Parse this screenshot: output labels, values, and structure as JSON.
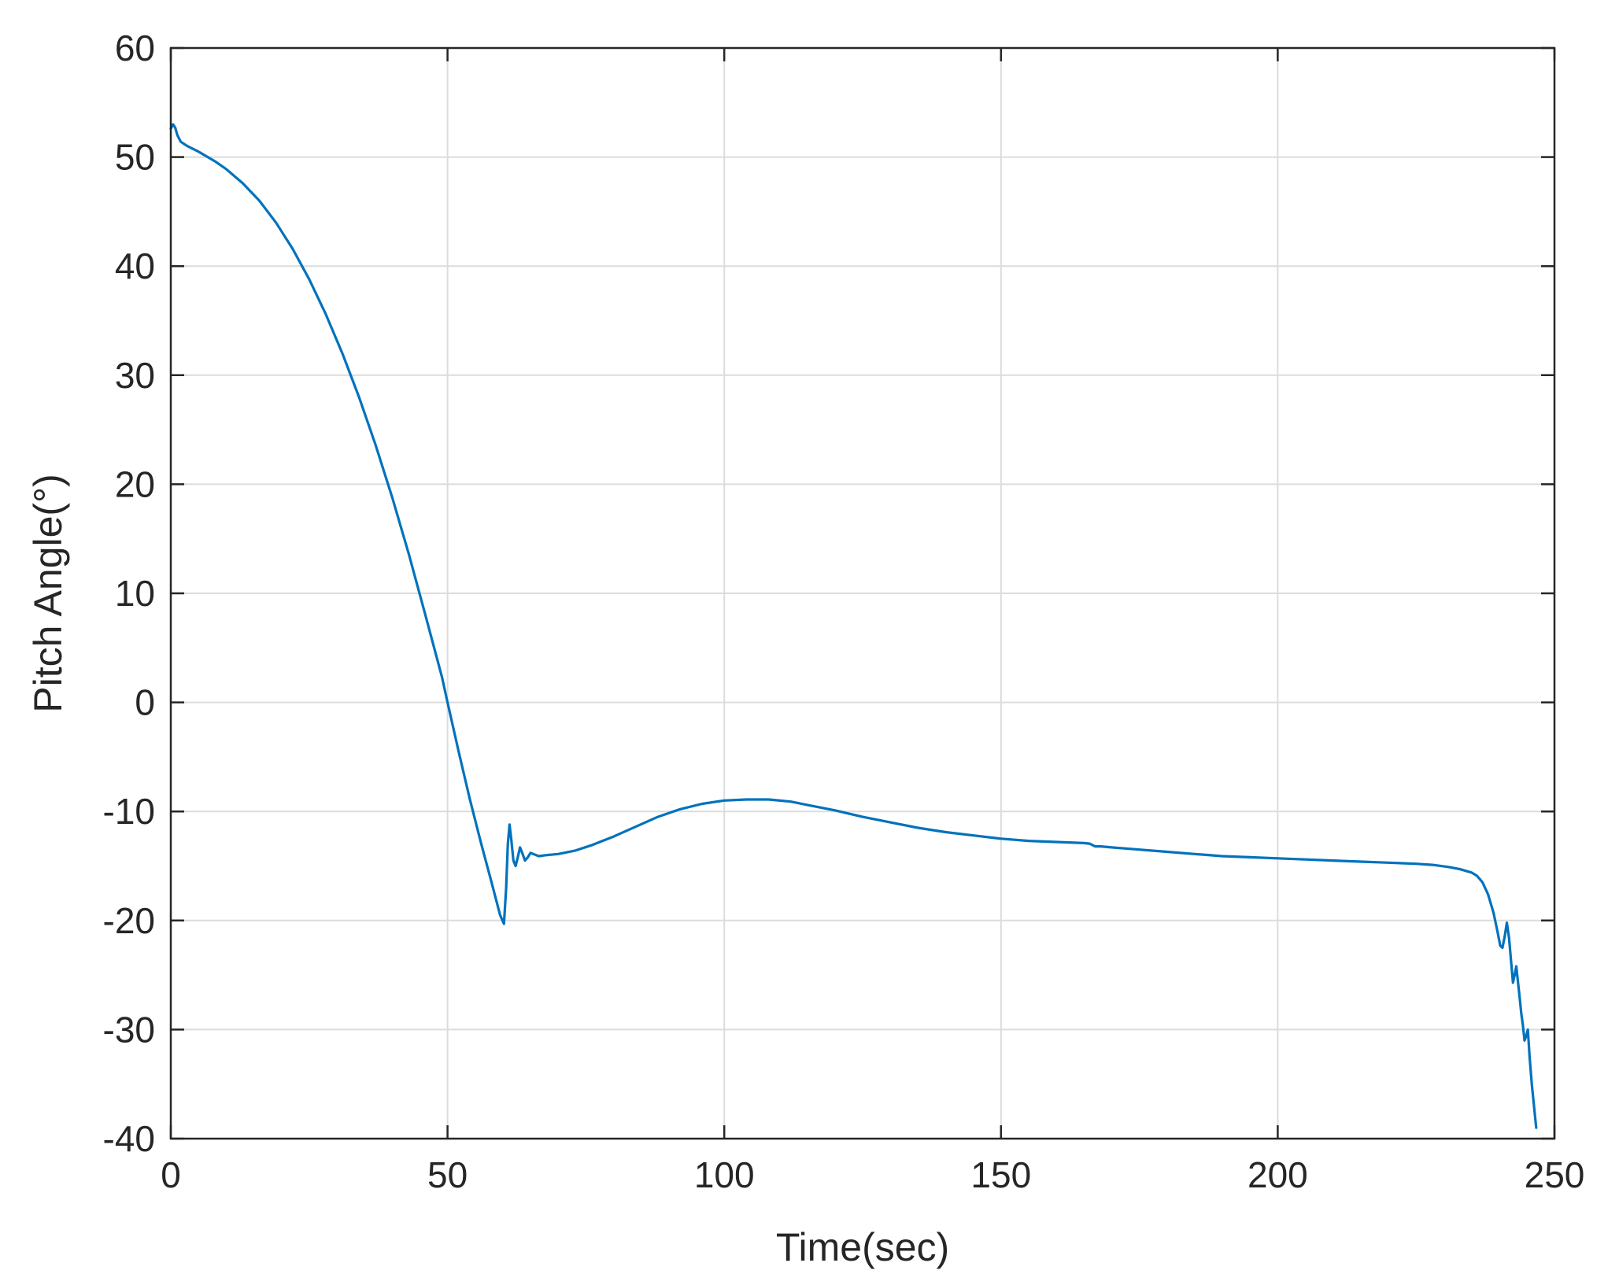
{
  "chart_data": {
    "type": "line",
    "title": "",
    "xlabel": "Time(sec)",
    "ylabel": "Pitch Angle(°)",
    "xlim": [
      0,
      250
    ],
    "ylim": [
      -40,
      60
    ],
    "x_ticks": [
      0,
      50,
      100,
      150,
      200,
      250
    ],
    "y_ticks": [
      -40,
      -30,
      -20,
      -10,
      0,
      10,
      20,
      30,
      40,
      50,
      60
    ],
    "x_tick_labels": [
      "0",
      "50",
      "100",
      "150",
      "200",
      "250"
    ],
    "y_tick_labels": [
      "-40",
      "-30",
      "-20",
      "-10",
      "0",
      "10",
      "20",
      "30",
      "40",
      "50",
      "60"
    ],
    "grid": true,
    "box": true,
    "legend": "none",
    "colors": {
      "line": "#0072BD",
      "grid": "#DCDCDC",
      "axes": "#262626",
      "background": "#FFFFFF"
    },
    "series": [
      {
        "color": "#0072BD",
        "points": [
          [
            0.0,
            52.6
          ],
          [
            0.4,
            53.0
          ],
          [
            0.8,
            52.7
          ],
          [
            1.2,
            52.0
          ],
          [
            1.8,
            51.4
          ],
          [
            3.0,
            51.0
          ],
          [
            5.0,
            50.5
          ],
          [
            8.0,
            49.6
          ],
          [
            10.0,
            48.9
          ],
          [
            13.0,
            47.6
          ],
          [
            16.0,
            46.0
          ],
          [
            19.0,
            44.0
          ],
          [
            22.0,
            41.6
          ],
          [
            25.0,
            38.8
          ],
          [
            28.0,
            35.6
          ],
          [
            31.0,
            32.0
          ],
          [
            34.0,
            28.0
          ],
          [
            37.0,
            23.6
          ],
          [
            40.0,
            18.8
          ],
          [
            43.0,
            13.6
          ],
          [
            46.0,
            8.0
          ],
          [
            49.0,
            2.3
          ],
          [
            50.0,
            0.0
          ],
          [
            52.0,
            -4.5
          ],
          [
            54.0,
            -8.8
          ],
          [
            56.0,
            -12.8
          ],
          [
            58.0,
            -16.6
          ],
          [
            59.5,
            -19.5
          ],
          [
            60.2,
            -20.3
          ],
          [
            60.6,
            -17.0
          ],
          [
            60.9,
            -13.0
          ],
          [
            61.2,
            -11.2
          ],
          [
            61.5,
            -12.5
          ],
          [
            61.9,
            -14.5
          ],
          [
            62.3,
            -15.0
          ],
          [
            62.7,
            -14.2
          ],
          [
            63.1,
            -13.3
          ],
          [
            63.5,
            -13.8
          ],
          [
            64.0,
            -14.5
          ],
          [
            64.5,
            -14.2
          ],
          [
            65.0,
            -13.8
          ],
          [
            65.5,
            -13.9
          ],
          [
            66.5,
            -14.1
          ],
          [
            68.0,
            -14.0
          ],
          [
            70.0,
            -13.9
          ],
          [
            73.0,
            -13.6
          ],
          [
            76.0,
            -13.1
          ],
          [
            80.0,
            -12.3
          ],
          [
            84.0,
            -11.4
          ],
          [
            88.0,
            -10.5
          ],
          [
            92.0,
            -9.8
          ],
          [
            96.0,
            -9.3
          ],
          [
            100.0,
            -9.0
          ],
          [
            104.0,
            -8.9
          ],
          [
            108.0,
            -8.9
          ],
          [
            112.0,
            -9.1
          ],
          [
            116.0,
            -9.5
          ],
          [
            120.0,
            -9.9
          ],
          [
            125.0,
            -10.5
          ],
          [
            130.0,
            -11.0
          ],
          [
            135.0,
            -11.5
          ],
          [
            140.0,
            -11.9
          ],
          [
            145.0,
            -12.2
          ],
          [
            150.0,
            -12.5
          ],
          [
            155.0,
            -12.7
          ],
          [
            160.0,
            -12.8
          ],
          [
            165.0,
            -12.9
          ],
          [
            166.0,
            -12.95
          ],
          [
            167.0,
            -13.2
          ],
          [
            168.0,
            -13.2
          ],
          [
            170.0,
            -13.3
          ],
          [
            175.0,
            -13.5
          ],
          [
            180.0,
            -13.7
          ],
          [
            185.0,
            -13.9
          ],
          [
            190.0,
            -14.1
          ],
          [
            195.0,
            -14.2
          ],
          [
            200.0,
            -14.3
          ],
          [
            205.0,
            -14.4
          ],
          [
            210.0,
            -14.5
          ],
          [
            215.0,
            -14.6
          ],
          [
            220.0,
            -14.7
          ],
          [
            225.0,
            -14.8
          ],
          [
            228.0,
            -14.9
          ],
          [
            231.0,
            -15.1
          ],
          [
            233.0,
            -15.3
          ],
          [
            235.0,
            -15.6
          ],
          [
            236.0,
            -15.9
          ],
          [
            237.0,
            -16.5
          ],
          [
            238.0,
            -17.6
          ],
          [
            239.0,
            -19.3
          ],
          [
            239.7,
            -21.0
          ],
          [
            240.2,
            -22.3
          ],
          [
            240.6,
            -22.5
          ],
          [
            241.0,
            -21.5
          ],
          [
            241.4,
            -20.2
          ],
          [
            241.8,
            -21.6
          ],
          [
            242.2,
            -24.0
          ],
          [
            242.5,
            -25.7
          ],
          [
            242.8,
            -25.0
          ],
          [
            243.1,
            -24.2
          ],
          [
            243.4,
            -25.6
          ],
          [
            243.7,
            -27.0
          ],
          [
            244.0,
            -28.5
          ],
          [
            244.3,
            -29.6
          ],
          [
            244.6,
            -31.0
          ],
          [
            244.9,
            -30.6
          ],
          [
            245.2,
            -30.0
          ],
          [
            245.5,
            -32.5
          ],
          [
            245.9,
            -35.0
          ],
          [
            246.3,
            -37.0
          ],
          [
            246.7,
            -39.0
          ]
        ]
      }
    ]
  }
}
